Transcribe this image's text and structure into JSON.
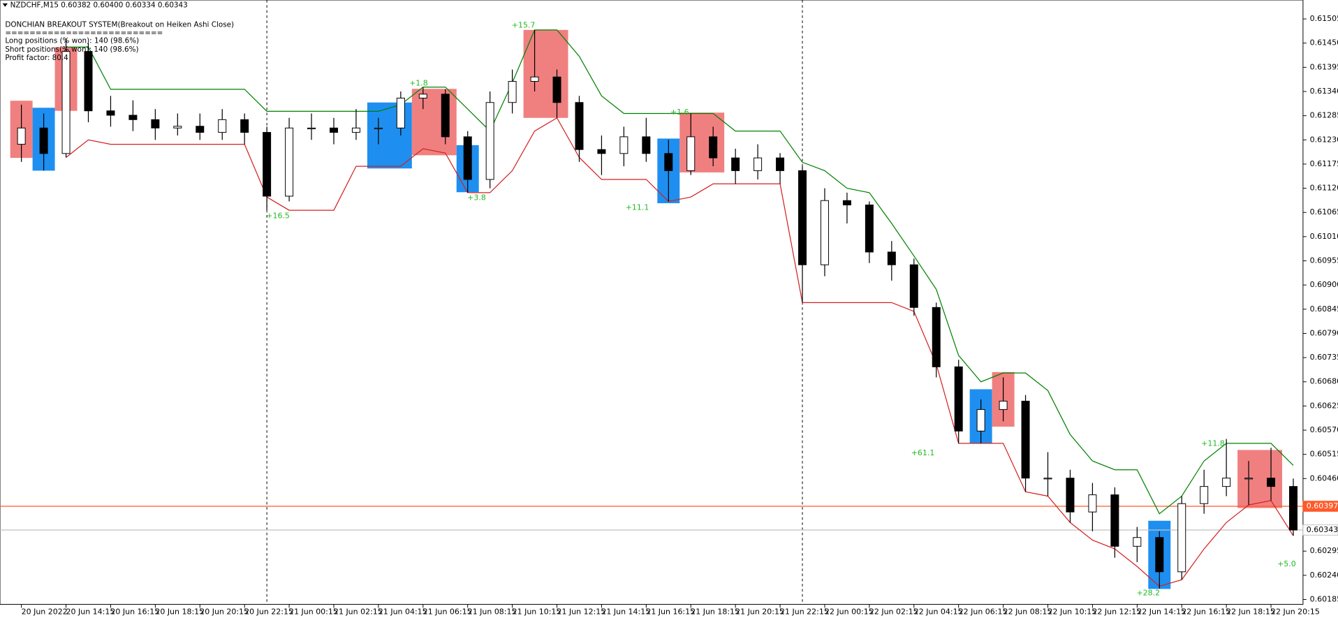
{
  "header": {
    "symbol_line": "NZDCHF,M15  0.60382 0.60400 0.60334 0.60343",
    "lines": [
      "DONCHIAN BREAKOUT SYSTEM(Breakout on Heiken Ashi Close)",
      "==========================",
      "Long positions (% won): 140 (98.6%)",
      "Short positions(% won): 140 (98.6%)",
      "Profit factor: 80.4"
    ]
  },
  "chart_data": {
    "type": "candlestick",
    "categories": [
      "20 Jun 2022",
      null,
      "20 Jun 14:15",
      null,
      "20 Jun 16:15",
      null,
      "20 Jun 18:15",
      null,
      "20 Jun 20:15",
      null,
      "20 Jun 22:15",
      null,
      "21 Jun 00:15",
      null,
      "21 Jun 02:15",
      null,
      "21 Jun 04:15",
      null,
      "21 Jun 06:15",
      null,
      "21 Jun 08:15",
      null,
      "21 Jun 10:15",
      null,
      "21 Jun 12:15",
      null,
      "21 Jun 14:15",
      null,
      "21 Jun 16:15",
      null,
      "21 Jun 18:15",
      null,
      "21 Jun 20:15",
      null,
      "21 Jun 22:15",
      null,
      "22 Jun 00:15",
      null,
      "22 Jun 02:15",
      null,
      "22 Jun 04:15",
      null,
      "22 Jun 06:15",
      null,
      "22 Jun 08:15",
      null,
      "22 Jun 10:15",
      null,
      "22 Jun 12:15",
      null,
      "22 Jun 14:15",
      null,
      "22 Jun 16:15",
      null,
      "22 Jun 18:15",
      null,
      "22 Jun 20:15",
      null
    ],
    "open": [
      0.6122,
      0.61257,
      0.61199,
      0.61431,
      0.61296,
      0.61286,
      0.61276,
      0.61257,
      0.61261,
      0.61247,
      0.61276,
      0.61247,
      0.61102,
      0.61257,
      0.61257,
      0.61247,
      0.61257,
      0.61257,
      0.61325,
      0.61334,
      0.61237,
      0.6114,
      0.61315,
      0.61363,
      0.61373,
      0.61315,
      0.61208,
      0.61199,
      0.61237,
      0.61199,
      0.6116,
      0.61237,
      0.61189,
      0.6116,
      0.61189,
      0.6116,
      0.60946,
      0.61092,
      0.61082,
      0.60975,
      0.60946,
      0.60849,
      0.60714,
      0.60568,
      0.60617,
      0.60636,
      0.60461,
      0.60461,
      0.60384,
      0.60423,
      0.60306,
      0.60326,
      0.60248,
      0.60403,
      0.60442,
      0.60461,
      0.60461,
      0.60442
    ],
    "high": [
      0.6131,
      0.6129,
      0.6146,
      0.6145,
      0.6133,
      0.6132,
      0.613,
      0.6129,
      0.6129,
      0.613,
      0.6129,
      0.6126,
      0.6128,
      0.6129,
      0.6128,
      0.613,
      0.6128,
      0.6134,
      0.6135,
      0.61345,
      0.6125,
      0.6134,
      0.6139,
      0.6148,
      0.6139,
      0.6133,
      0.6124,
      0.6126,
      0.6128,
      0.6123,
      0.6129,
      0.6126,
      0.6121,
      0.6122,
      0.612,
      0.6117,
      0.6112,
      0.6111,
      0.6109,
      0.61,
      0.6096,
      0.6086,
      0.6073,
      0.6064,
      0.6069,
      0.6065,
      0.6052,
      0.6048,
      0.6045,
      0.6044,
      0.6035,
      0.6034,
      0.6042,
      0.6048,
      0.6055,
      0.605,
      0.6053,
      0.6046
    ],
    "low": [
      0.6118,
      0.6116,
      0.6119,
      0.6127,
      0.6126,
      0.6125,
      0.6123,
      0.6124,
      0.6123,
      0.6123,
      0.6122,
      0.6107,
      0.6109,
      0.6123,
      0.6122,
      0.6123,
      0.6122,
      0.6124,
      0.613,
      0.6122,
      0.6111,
      0.6112,
      0.6129,
      0.6134,
      0.6128,
      0.6118,
      0.6115,
      0.6117,
      0.6118,
      0.6109,
      0.6115,
      0.6117,
      0.6113,
      0.6114,
      0.6113,
      0.6086,
      0.6092,
      0.6104,
      0.6095,
      0.6091,
      0.6083,
      0.6069,
      0.6054,
      0.6054,
      0.6059,
      0.6043,
      0.6042,
      0.6036,
      0.6034,
      0.6028,
      0.6027,
      0.6021,
      0.6023,
      0.6038,
      0.6042,
      0.604,
      0.6041,
      0.6033
    ],
    "close": [
      0.61257,
      0.61199,
      0.61431,
      0.61296,
      0.61286,
      0.61276,
      0.61257,
      0.61261,
      0.61247,
      0.61276,
      0.61247,
      0.61102,
      0.61257,
      0.61257,
      0.61247,
      0.61257,
      0.61257,
      0.61325,
      0.61334,
      0.61237,
      0.6114,
      0.61315,
      0.61363,
      0.61373,
      0.61315,
      0.61208,
      0.61199,
      0.61237,
      0.61199,
      0.6116,
      0.61237,
      0.61189,
      0.6116,
      0.61189,
      0.6116,
      0.60946,
      0.61092,
      0.61082,
      0.60975,
      0.60946,
      0.60849,
      0.60714,
      0.60568,
      0.60617,
      0.60636,
      0.60461,
      0.60461,
      0.60384,
      0.60423,
      0.60306,
      0.60326,
      0.60248,
      0.60403,
      0.60442,
      0.60461,
      0.60461,
      0.60442,
      0.60343
    ],
    "bull_color": "#ffffff",
    "bear_color": "#000000",
    "channels": [
      {
        "color": "#008000",
        "values": [
          null,
          null,
          0.61441,
          0.61441,
          0.61345,
          0.61345,
          0.61345,
          0.61345,
          0.61345,
          0.61345,
          0.61345,
          0.61295,
          0.61295,
          0.61295,
          0.61295,
          0.61295,
          0.61295,
          0.6131,
          0.6135,
          0.6135,
          0.613,
          0.6125,
          0.6136,
          0.6148,
          0.6148,
          0.6142,
          0.6133,
          0.6129,
          0.6129,
          0.6129,
          0.6129,
          0.6129,
          0.6125,
          0.6125,
          0.6125,
          0.61179,
          0.6116,
          0.6112,
          0.6111,
          0.6104,
          0.60966,
          0.6089,
          0.6074,
          0.6068,
          0.607,
          0.607,
          0.6066,
          0.6056,
          0.605,
          0.6048,
          0.6048,
          0.6038,
          0.6042,
          0.605,
          0.6054,
          0.6054,
          0.6054,
          0.6049
        ]
      },
      {
        "color": "#d42020",
        "values": [
          null,
          null,
          0.6119,
          0.6123,
          0.6122,
          0.6122,
          0.6122,
          0.6122,
          0.6122,
          0.6122,
          0.6122,
          0.611,
          0.6107,
          0.6107,
          0.6107,
          0.6117,
          0.6117,
          0.6117,
          0.6121,
          0.612,
          0.6111,
          0.6111,
          0.6116,
          0.6125,
          0.6128,
          0.6119,
          0.6114,
          0.6114,
          0.6114,
          0.6109,
          0.611,
          0.6113,
          0.6113,
          0.6113,
          0.6113,
          0.6086,
          0.6086,
          0.6086,
          0.6086,
          0.6086,
          0.6084,
          0.6072,
          0.6054,
          0.6054,
          0.6054,
          0.6043,
          0.6042,
          0.6036,
          0.6032,
          0.603,
          0.6026,
          0.60215,
          0.6023,
          0.603,
          0.6036,
          0.604,
          0.6041,
          0.6033
        ]
      }
    ],
    "positions": [
      {
        "color": "#f08080",
        "from": 0,
        "to": 0,
        "low": 0.61189,
        "high": 0.61319
      },
      {
        "color": "#1e8ff0",
        "from": 1,
        "to": 1,
        "low": 0.6116,
        "high": 0.61303
      },
      {
        "color": "#f08080",
        "from": 2,
        "to": 2,
        "low": 0.61296,
        "high": 0.61441
      },
      {
        "color": "#1e8ff0",
        "from": 16,
        "to": 17,
        "low": 0.61165,
        "high": 0.61315
      },
      {
        "color": "#f08080",
        "from": 18,
        "to": 19,
        "low": 0.61195,
        "high": 0.61346
      },
      {
        "color": "#1e8ff0",
        "from": 20,
        "to": 20,
        "low": 0.61111,
        "high": 0.61218
      },
      {
        "color": "#f08080",
        "from": 23,
        "to": 24,
        "low": 0.6128,
        "high": 0.6148
      },
      {
        "color": "#1e8ff0",
        "from": 29,
        "to": 29,
        "low": 0.61086,
        "high": 0.61233
      },
      {
        "color": "#f08080",
        "from": 30,
        "to": 31,
        "low": 0.61156,
        "high": 0.61292
      },
      {
        "color": "#1e8ff0",
        "from": 43,
        "to": 43,
        "low": 0.60539,
        "high": 0.60663
      },
      {
        "color": "#f08080",
        "from": 44,
        "to": 44,
        "low": 0.60578,
        "high": 0.60702
      },
      {
        "color": "#1e8ff0",
        "from": 51,
        "to": 51,
        "low": 0.60209,
        "high": 0.60364
      },
      {
        "color": "#f08080",
        "from": 55,
        "to": 56,
        "low": 0.60393,
        "high": 0.60525
      }
    ],
    "annotations": [
      {
        "text": "+15.7",
        "x": 22.5,
        "y": 0.6149
      },
      {
        "text": "+1.8",
        "x": 17.8,
        "y": 0.61358
      },
      {
        "text": "+16.5",
        "x": 11.5,
        "y": 0.61057
      },
      {
        "text": "+3.8",
        "x": 20.4,
        "y": 0.61098
      },
      {
        "text": "+11.1",
        "x": 27.6,
        "y": 0.61076
      },
      {
        "text": "+1.6",
        "x": 29.5,
        "y": 0.61292
      },
      {
        "text": "+61.1",
        "x": 40.4,
        "y": 0.60518
      },
      {
        "text": "+11.8",
        "x": 53.4,
        "y": 0.60539
      },
      {
        "text": "+28.2",
        "x": 50.5,
        "y": 0.60199
      },
      {
        "text": "+5.0",
        "x": 56.7,
        "y": 0.60265
      }
    ],
    "annotation_color": "#22b822",
    "price_lines": [
      {
        "value": 0.60397,
        "color": "#ff5a2a",
        "label_fill": "#ff5a2a",
        "label_color": "#ffffff"
      },
      {
        "value": 0.60343,
        "color": "#c0c0c0",
        "label_fill": "#ffffff",
        "label_color": "#000000"
      }
    ],
    "ylim": [
      0.60174,
      0.61548
    ],
    "yticks": [
      0.61505,
      {
        "value": 0.6145,
        "label": "0.61450"
      },
      0.61395,
      {
        "value": 0.6134,
        "label": "0.61340"
      },
      0.61285,
      {
        "value": 0.6123,
        "label": "0.61230"
      },
      0.61175,
      {
        "value": 0.6112,
        "label": "0.61120"
      },
      0.61065,
      {
        "value": 0.6101,
        "label": "0.61010"
      },
      0.60955,
      {
        "value": 0.609,
        "label": "0.60900"
      },
      0.60845,
      {
        "value": 0.6079,
        "label": "0.60790"
      },
      0.60735,
      {
        "value": 0.6068,
        "label": "0.60680"
      },
      0.60625,
      {
        "value": 0.6057,
        "label": "0.60570"
      },
      0.60515,
      {
        "value": 0.6046,
        "label": "0.60460"
      },
      0.60295,
      {
        "value": 0.6024,
        "label": "0.60240"
      },
      0.60185
    ],
    "period_separators": true
  }
}
